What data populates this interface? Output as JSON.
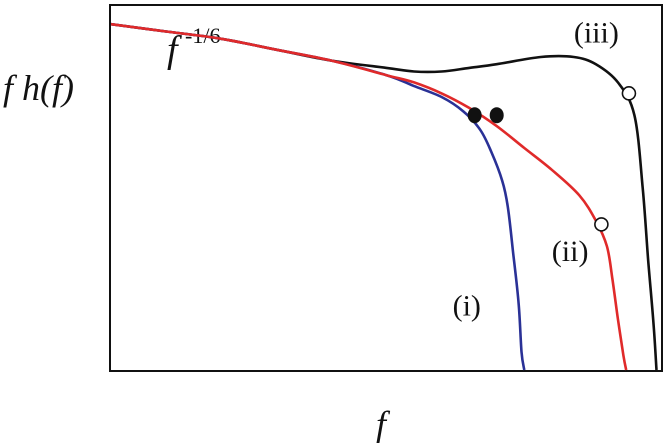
{
  "chart_data": {
    "type": "line",
    "xlabel": "f",
    "ylabel": "f h(f)",
    "annotation": {
      "base": "f",
      "exponent": "-1/6"
    },
    "grid": false,
    "legend": "none",
    "series": [
      {
        "name": "(i)",
        "color": "#2a3196",
        "points": [
          [
            0,
            0.95
          ],
          [
            0.1,
            0.93
          ],
          [
            0.2,
            0.91
          ],
          [
            0.3,
            0.88
          ],
          [
            0.4,
            0.85
          ],
          [
            0.5,
            0.81
          ],
          [
            0.55,
            0.78
          ],
          [
            0.6,
            0.75
          ],
          [
            0.64,
            0.71
          ],
          [
            0.67,
            0.66
          ],
          [
            0.69,
            0.6
          ],
          [
            0.71,
            0.52
          ],
          [
            0.72,
            0.45
          ],
          [
            0.73,
            0.32
          ],
          [
            0.74,
            0.18
          ],
          [
            0.745,
            0.05
          ],
          [
            0.75,
            0
          ]
        ]
      },
      {
        "name": "(ii)",
        "color": "#e02a2a",
        "points": [
          [
            0,
            0.95
          ],
          [
            0.1,
            0.93
          ],
          [
            0.2,
            0.91
          ],
          [
            0.3,
            0.88
          ],
          [
            0.4,
            0.85
          ],
          [
            0.5,
            0.81
          ],
          [
            0.55,
            0.79
          ],
          [
            0.6,
            0.76
          ],
          [
            0.65,
            0.72
          ],
          [
            0.7,
            0.67
          ],
          [
            0.75,
            0.61
          ],
          [
            0.8,
            0.55
          ],
          [
            0.85,
            0.48
          ],
          [
            0.88,
            0.41
          ],
          [
            0.9,
            0.34
          ],
          [
            0.91,
            0.25
          ],
          [
            0.92,
            0.14
          ],
          [
            0.93,
            0.04
          ],
          [
            0.935,
            0
          ]
        ]
      },
      {
        "name": "(iii)",
        "color": "#111111",
        "points": [
          [
            0,
            0.95
          ],
          [
            0.1,
            0.93
          ],
          [
            0.2,
            0.91
          ],
          [
            0.3,
            0.88
          ],
          [
            0.4,
            0.85
          ],
          [
            0.5,
            0.83
          ],
          [
            0.55,
            0.82
          ],
          [
            0.6,
            0.82
          ],
          [
            0.65,
            0.83
          ],
          [
            0.7,
            0.84
          ],
          [
            0.78,
            0.86
          ],
          [
            0.84,
            0.86
          ],
          [
            0.88,
            0.84
          ],
          [
            0.92,
            0.79
          ],
          [
            0.95,
            0.7
          ],
          [
            0.965,
            0.5
          ],
          [
            0.975,
            0.3
          ],
          [
            0.985,
            0.12
          ],
          [
            0.99,
            0
          ]
        ]
      }
    ],
    "filled_markers": [
      [
        0.66,
        0.7
      ],
      [
        0.7,
        0.7
      ]
    ],
    "open_markers": [
      [
        0.94,
        0.76
      ],
      [
        0.89,
        0.4
      ]
    ],
    "series_labels": [
      {
        "text": "(i)",
        "at": [
          0.62,
          0.15
        ]
      },
      {
        "text": "(ii)",
        "at": [
          0.8,
          0.3
        ]
      },
      {
        "text": "(iii)",
        "at": [
          0.84,
          0.9
        ]
      }
    ],
    "xlim": [
      0,
      1
    ],
    "ylim": [
      0,
      1
    ]
  }
}
